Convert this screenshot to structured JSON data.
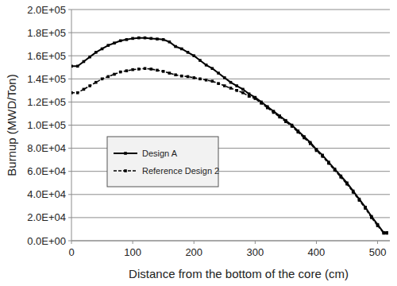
{
  "chart_data": {
    "type": "line",
    "x_label": "Distance from the bottom of the core (cm)",
    "y_label": "Burnup (MWD/Ton)",
    "xlim": [
      0,
      520
    ],
    "xticks": [
      0,
      100,
      200,
      300,
      400,
      500
    ],
    "ylim": [
      0,
      200000
    ],
    "yticks": [
      {
        "value": 0,
        "label": "0.0E+00"
      },
      {
        "value": 20000,
        "label": "2.0E+04"
      },
      {
        "value": 40000,
        "label": "4.0E+04"
      },
      {
        "value": 60000,
        "label": "6.0E+04"
      },
      {
        "value": 80000,
        "label": "8.0E+04"
      },
      {
        "value": 100000,
        "label": "1.0E+05"
      },
      {
        "value": 120000,
        "label": "1.2E+05"
      },
      {
        "value": 140000,
        "label": "1.4E+05"
      },
      {
        "value": 160000,
        "label": "1.6E+05"
      },
      {
        "value": 180000,
        "label": "1.8E+05"
      },
      {
        "value": 200000,
        "label": "2.0E+05"
      }
    ],
    "grid": true,
    "legend": "center-left",
    "x": [
      0,
      10,
      20,
      30,
      40,
      50,
      60,
      70,
      80,
      90,
      100,
      110,
      120,
      130,
      140,
      150,
      160,
      170,
      180,
      190,
      200,
      210,
      220,
      230,
      240,
      250,
      260,
      270,
      280,
      290,
      300,
      310,
      320,
      330,
      340,
      350,
      360,
      370,
      380,
      390,
      400,
      410,
      420,
      430,
      440,
      450,
      460,
      470,
      480,
      490,
      500,
      510,
      515
    ],
    "series": [
      {
        "name": "Design A",
        "color": "#000000",
        "line_style": "solid",
        "marker": "square",
        "values": [
          151000,
          151000,
          155000,
          159000,
          163000,
          166000,
          169000,
          171000,
          173000,
          174000,
          175000,
          175500,
          175500,
          175000,
          174500,
          174000,
          172000,
          168000,
          166000,
          163000,
          160000,
          156000,
          152000,
          149000,
          145000,
          141000,
          137000,
          134000,
          131000,
          127000,
          124000,
          120000,
          116000,
          112000,
          108000,
          104000,
          100000,
          95000,
          90000,
          85000,
          79000,
          74000,
          68000,
          62000,
          56000,
          50000,
          43000,
          36000,
          29000,
          21000,
          14000,
          7000,
          7000
        ]
      },
      {
        "name": "Reference Design 2",
        "color": "#000000",
        "line_style": "dashed",
        "marker": "square",
        "values": [
          128000,
          128000,
          131000,
          134000,
          137000,
          140000,
          142000,
          144000,
          146000,
          147000,
          148000,
          148500,
          149000,
          148500,
          147500,
          146500,
          145000,
          143500,
          142500,
          142000,
          141000,
          140000,
          139000,
          138000,
          136000,
          134000,
          132000,
          130000,
          128000,
          125000,
          123000,
          119000,
          115000,
          111000,
          107000,
          103000,
          99000,
          94000,
          89000,
          84000,
          78000,
          73000,
          67000,
          61000,
          55000,
          49000,
          42000,
          35000,
          28000,
          20000,
          13000,
          6500,
          6500
        ]
      }
    ]
  }
}
